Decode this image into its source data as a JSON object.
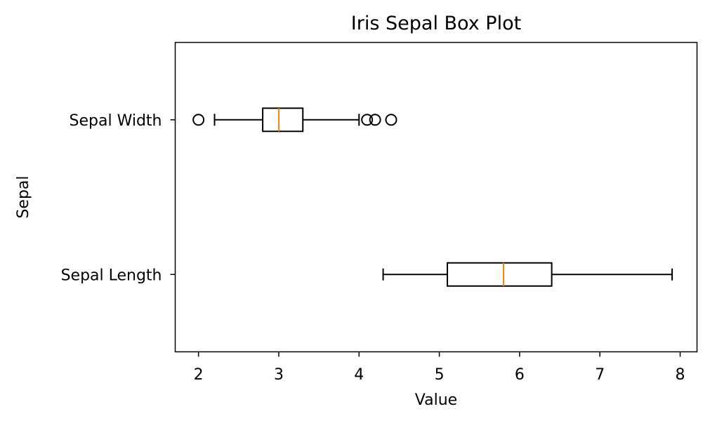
{
  "chart_data": {
    "type": "boxplot",
    "orientation": "horizontal",
    "title": "Iris Sepal Box Plot",
    "xlabel": "Value",
    "ylabel": "Sepal",
    "xlim": [
      1.71,
      8.21
    ],
    "x_ticks": [
      2,
      3,
      4,
      5,
      6,
      7,
      8
    ],
    "grid": false,
    "categories": [
      "Sepal Length",
      "Sepal Width"
    ],
    "boxes": [
      {
        "label": "Sepal Length",
        "whisker_low": 4.3,
        "q1": 5.1,
        "median": 5.8,
        "q3": 6.4,
        "whisker_high": 7.9,
        "outliers": []
      },
      {
        "label": "Sepal Width",
        "whisker_low": 2.2,
        "q1": 2.8,
        "median": 3.0,
        "q3": 3.3,
        "whisker_high": 4.0,
        "outliers": [
          2.0,
          4.1,
          4.2,
          4.4
        ]
      }
    ],
    "colors": {
      "box": "#000000",
      "median": "#ff7f0e",
      "outlier": "#000000"
    }
  }
}
